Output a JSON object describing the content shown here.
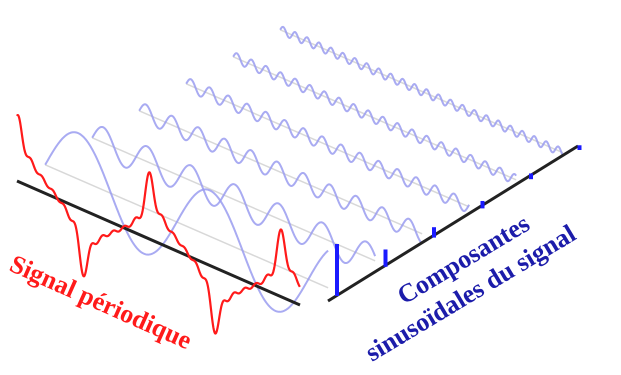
{
  "figure": {
    "label_time_domain": "Signal périodique",
    "label_frequency_domain_line1": "Composantes",
    "label_frequency_domain_line2": "sinusoïdales du signal"
  },
  "colors": {
    "periodic_signal": "#ff1a1a",
    "sinusoid_waves": "#9a9cf0",
    "spectrum_bars": "#1a1aff",
    "frequency_text": "#1c1caa",
    "axes": "#222222",
    "guide_lines": "#d8d8d8"
  },
  "components": [
    {
      "harmonic": 1,
      "amplitude": 1.0
    },
    {
      "harmonic": 3,
      "amplitude": 0.333
    },
    {
      "harmonic": 5,
      "amplitude": 0.2
    },
    {
      "harmonic": 7,
      "amplitude": 0.143
    },
    {
      "harmonic": 9,
      "amplitude": 0.111
    },
    {
      "harmonic": 11,
      "amplitude": 0.091
    }
  ]
}
